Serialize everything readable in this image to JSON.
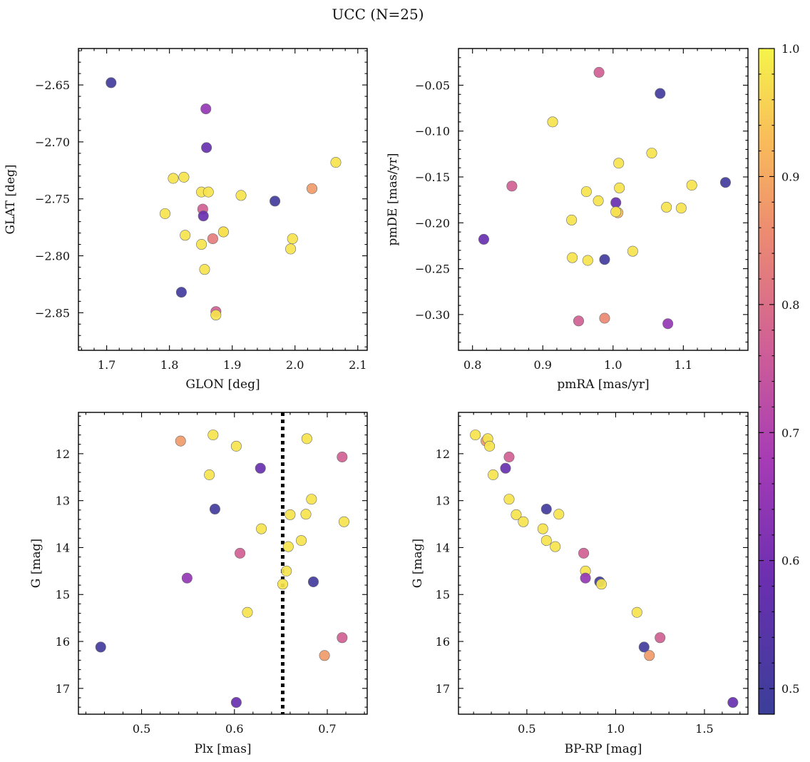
{
  "figure": {
    "title": "UCC (N=25)"
  },
  "colorbar": {
    "range": [
      0.48,
      1.0
    ],
    "ticks": [
      0.5,
      0.6,
      0.7,
      0.8,
      0.9,
      1.0
    ],
    "tick_labels": [
      "0.5",
      "0.6",
      "0.7",
      "0.8",
      "0.9",
      "1.0"
    ]
  },
  "chart_data": [
    {
      "type": "scatter",
      "title": "",
      "xlabel": "GLON [deg]",
      "ylabel": "GLAT [deg]",
      "xlim": [
        1.655,
        2.115
      ],
      "ylim": [
        -2.883,
        -2.618
      ],
      "y_inverted": false,
      "xticks": [
        1.7,
        1.8,
        1.9,
        2.0,
        2.1
      ],
      "xtick_labels": [
        "1.7",
        "1.8",
        "1.9",
        "2.0",
        "2.1"
      ],
      "yticks": [
        -2.65,
        -2.7,
        -2.75,
        -2.8,
        -2.85
      ],
      "ytick_labels": [
        "−2.65",
        "−2.70",
        "−2.75",
        "−2.80",
        "−2.85"
      ],
      "colormap": "plasma",
      "points": [
        {
          "x": 1.707,
          "y": -2.648,
          "c": 0.5
        },
        {
          "x": 1.858,
          "y": -2.671,
          "c": 0.65
        },
        {
          "x": 1.859,
          "y": -2.705,
          "c": 0.58
        },
        {
          "x": 2.065,
          "y": -2.718,
          "c": 0.98
        },
        {
          "x": 1.806,
          "y": -2.732,
          "c": 0.98
        },
        {
          "x": 1.823,
          "y": -2.731,
          "c": 0.98
        },
        {
          "x": 2.027,
          "y": -2.741,
          "c": 0.88
        },
        {
          "x": 1.851,
          "y": -2.744,
          "c": 0.98
        },
        {
          "x": 1.862,
          "y": -2.744,
          "c": 0.98
        },
        {
          "x": 1.914,
          "y": -2.747,
          "c": 0.98
        },
        {
          "x": 1.968,
          "y": -2.752,
          "c": 0.5
        },
        {
          "x": 1.853,
          "y": -2.759,
          "c": 0.77
        },
        {
          "x": 1.793,
          "y": -2.763,
          "c": 0.98
        },
        {
          "x": 1.854,
          "y": -2.765,
          "c": 0.58
        },
        {
          "x": 1.886,
          "y": -2.779,
          "c": 0.93
        },
        {
          "x": 1.886,
          "y": -2.779,
          "c": 0.98
        },
        {
          "x": 1.825,
          "y": -2.782,
          "c": 0.98
        },
        {
          "x": 1.869,
          "y": -2.785,
          "c": 0.83
        },
        {
          "x": 1.996,
          "y": -2.785,
          "c": 0.98
        },
        {
          "x": 1.851,
          "y": -2.79,
          "c": 0.98
        },
        {
          "x": 1.993,
          "y": -2.794,
          "c": 0.98
        },
        {
          "x": 1.856,
          "y": -2.812,
          "c": 0.98
        },
        {
          "x": 1.819,
          "y": -2.832,
          "c": 0.5
        },
        {
          "x": 1.874,
          "y": -2.849,
          "c": 0.77
        },
        {
          "x": 1.874,
          "y": -2.852,
          "c": 0.98
        }
      ]
    },
    {
      "type": "scatter",
      "title": "",
      "xlabel": "pmRA [mas/yr]",
      "ylabel": "pmDE [mas/yr]",
      "xlim": [
        0.78,
        1.192
      ],
      "ylim": [
        -0.339,
        -0.01
      ],
      "y_inverted": false,
      "xticks": [
        0.8,
        0.9,
        1.0,
        1.1
      ],
      "xtick_labels": [
        "0.8",
        "0.9",
        "1.0",
        "1.1"
      ],
      "yticks": [
        -0.05,
        -0.1,
        -0.15,
        -0.2,
        -0.25,
        -0.3
      ],
      "ytick_labels": [
        "−0.05",
        "−0.10",
        "−0.15",
        "−0.20",
        "−0.25",
        "−0.30"
      ],
      "colormap": "plasma",
      "points": [
        {
          "x": 0.98,
          "y": -0.036,
          "c": 0.77
        },
        {
          "x": 1.067,
          "y": -0.059,
          "c": 0.5
        },
        {
          "x": 0.914,
          "y": -0.09,
          "c": 0.98
        },
        {
          "x": 1.055,
          "y": -0.124,
          "c": 0.98
        },
        {
          "x": 1.008,
          "y": -0.135,
          "c": 0.98
        },
        {
          "x": 1.16,
          "y": -0.156,
          "c": 0.5
        },
        {
          "x": 0.856,
          "y": -0.16,
          "c": 0.77
        },
        {
          "x": 1.112,
          "y": -0.159,
          "c": 0.98
        },
        {
          "x": 1.009,
          "y": -0.162,
          "c": 0.98
        },
        {
          "x": 0.962,
          "y": -0.166,
          "c": 0.98
        },
        {
          "x": 0.979,
          "y": -0.176,
          "c": 0.98
        },
        {
          "x": 1.004,
          "y": -0.178,
          "c": 0.58
        },
        {
          "x": 1.076,
          "y": -0.183,
          "c": 0.98
        },
        {
          "x": 1.097,
          "y": -0.184,
          "c": 0.98
        },
        {
          "x": 1.007,
          "y": -0.189,
          "c": 0.93
        },
        {
          "x": 1.004,
          "y": -0.188,
          "c": 0.98
        },
        {
          "x": 0.941,
          "y": -0.197,
          "c": 0.98
        },
        {
          "x": 0.816,
          "y": -0.218,
          "c": 0.58
        },
        {
          "x": 1.028,
          "y": -0.231,
          "c": 0.98
        },
        {
          "x": 0.942,
          "y": -0.238,
          "c": 0.98
        },
        {
          "x": 0.988,
          "y": -0.24,
          "c": 0.5
        },
        {
          "x": 0.964,
          "y": -0.241,
          "c": 0.98
        },
        {
          "x": 0.951,
          "y": -0.307,
          "c": 0.77
        },
        {
          "x": 0.988,
          "y": -0.304,
          "c": 0.85
        },
        {
          "x": 1.078,
          "y": -0.31,
          "c": 0.65
        }
      ]
    },
    {
      "type": "scatter",
      "title": "",
      "xlabel": "Plx [mas]",
      "ylabel": "G [mag]",
      "xlim": [
        0.432,
        0.743
      ],
      "ylim": [
        11.12,
        17.55
      ],
      "y_inverted": true,
      "xticks": [
        0.5,
        0.6,
        0.7
      ],
      "xtick_labels": [
        "0.5",
        "0.6",
        "0.7"
      ],
      "yticks": [
        12,
        13,
        14,
        15,
        16,
        17
      ],
      "ytick_labels": [
        "12",
        "13",
        "14",
        "15",
        "16",
        "17"
      ],
      "vline": {
        "x": 0.652,
        "style": "dotted"
      },
      "colormap": "plasma",
      "points": [
        {
          "x": 0.577,
          "y": 11.6,
          "c": 0.98
        },
        {
          "x": 0.542,
          "y": 11.73,
          "c": 0.88
        },
        {
          "x": 0.602,
          "y": 11.84,
          "c": 0.98
        },
        {
          "x": 0.678,
          "y": 11.68,
          "c": 0.98
        },
        {
          "x": 0.716,
          "y": 12.07,
          "c": 0.77
        },
        {
          "x": 0.628,
          "y": 12.31,
          "c": 0.58
        },
        {
          "x": 0.573,
          "y": 12.45,
          "c": 0.98
        },
        {
          "x": 0.683,
          "y": 12.97,
          "c": 0.98
        },
        {
          "x": 0.579,
          "y": 13.18,
          "c": 0.5
        },
        {
          "x": 0.66,
          "y": 13.3,
          "c": 0.98
        },
        {
          "x": 0.677,
          "y": 13.29,
          "c": 0.98
        },
        {
          "x": 0.718,
          "y": 13.45,
          "c": 0.98
        },
        {
          "x": 0.629,
          "y": 13.6,
          "c": 0.98
        },
        {
          "x": 0.672,
          "y": 13.85,
          "c": 0.98
        },
        {
          "x": 0.658,
          "y": 13.98,
          "c": 0.98
        },
        {
          "x": 0.606,
          "y": 14.12,
          "c": 0.77
        },
        {
          "x": 0.656,
          "y": 14.5,
          "c": 0.98
        },
        {
          "x": 0.549,
          "y": 14.65,
          "c": 0.65
        },
        {
          "x": 0.685,
          "y": 14.73,
          "c": 0.5
        },
        {
          "x": 0.652,
          "y": 14.78,
          "c": 0.98
        },
        {
          "x": 0.614,
          "y": 15.38,
          "c": 0.98
        },
        {
          "x": 0.716,
          "y": 15.92,
          "c": 0.77
        },
        {
          "x": 0.456,
          "y": 16.12,
          "c": 0.5
        },
        {
          "x": 0.697,
          "y": 16.3,
          "c": 0.88
        },
        {
          "x": 0.602,
          "y": 17.3,
          "c": 0.58
        }
      ]
    },
    {
      "type": "scatter",
      "title": "",
      "xlabel": "BP-RP [mag]",
      "ylabel": "G [mag]",
      "xlim": [
        0.115,
        1.745
      ],
      "ylim": [
        11.12,
        17.55
      ],
      "y_inverted": true,
      "xticks": [
        0.5,
        1.0,
        1.5
      ],
      "xtick_labels": [
        "0.5",
        "1.0",
        "1.5"
      ],
      "yticks": [
        12,
        13,
        14,
        15,
        16,
        17
      ],
      "ytick_labels": [
        "12",
        "13",
        "14",
        "15",
        "16",
        "17"
      ],
      "colormap": "plasma",
      "points": [
        {
          "x": 0.21,
          "y": 11.6,
          "c": 0.98
        },
        {
          "x": 0.27,
          "y": 11.73,
          "c": 0.88
        },
        {
          "x": 0.28,
          "y": 11.68,
          "c": 0.98
        },
        {
          "x": 0.29,
          "y": 11.84,
          "c": 0.98
        },
        {
          "x": 0.4,
          "y": 12.07,
          "c": 0.77
        },
        {
          "x": 0.38,
          "y": 12.31,
          "c": 0.58
        },
        {
          "x": 0.31,
          "y": 12.45,
          "c": 0.98
        },
        {
          "x": 0.4,
          "y": 12.97,
          "c": 0.98
        },
        {
          "x": 0.61,
          "y": 13.18,
          "c": 0.5
        },
        {
          "x": 0.44,
          "y": 13.3,
          "c": 0.98
        },
        {
          "x": 0.68,
          "y": 13.29,
          "c": 0.98
        },
        {
          "x": 0.48,
          "y": 13.45,
          "c": 0.98
        },
        {
          "x": 0.59,
          "y": 13.6,
          "c": 0.98
        },
        {
          "x": 0.61,
          "y": 13.85,
          "c": 0.98
        },
        {
          "x": 0.66,
          "y": 13.98,
          "c": 0.98
        },
        {
          "x": 0.82,
          "y": 14.12,
          "c": 0.77
        },
        {
          "x": 0.83,
          "y": 14.5,
          "c": 0.98
        },
        {
          "x": 0.83,
          "y": 14.65,
          "c": 0.65
        },
        {
          "x": 0.91,
          "y": 14.73,
          "c": 0.5
        },
        {
          "x": 0.92,
          "y": 14.78,
          "c": 0.98
        },
        {
          "x": 1.12,
          "y": 15.38,
          "c": 0.98
        },
        {
          "x": 1.25,
          "y": 15.92,
          "c": 0.77
        },
        {
          "x": 1.16,
          "y": 16.12,
          "c": 0.5
        },
        {
          "x": 1.19,
          "y": 16.3,
          "c": 0.88
        },
        {
          "x": 1.66,
          "y": 17.3,
          "c": 0.58
        }
      ]
    }
  ]
}
